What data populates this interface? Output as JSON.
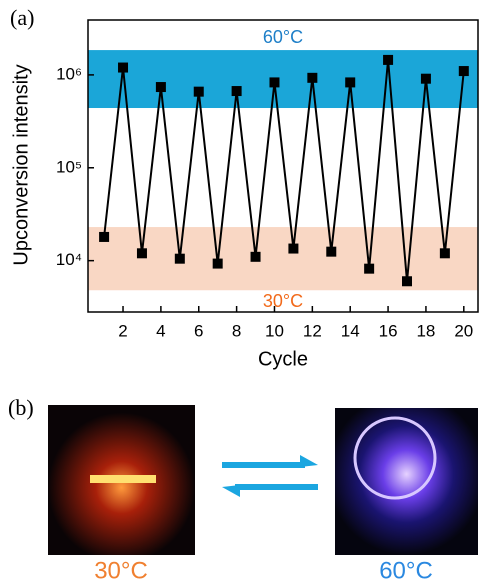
{
  "chart_data": {
    "type": "line",
    "x_label": "Cycle",
    "y_label": "Upconversion intensity",
    "x": [
      1,
      2,
      3,
      4,
      5,
      6,
      7,
      8,
      9,
      10,
      11,
      12,
      13,
      14,
      15,
      16,
      17,
      18,
      19,
      20
    ],
    "series": [
      {
        "color": "#000000",
        "values": [
          18000,
          1200000,
          12000,
          740000,
          10500,
          660000,
          9300,
          670000,
          11000,
          830000,
          13500,
          930000,
          12500,
          830000,
          8200,
          1450000,
          6000,
          910000,
          12000,
          1100000
        ]
      }
    ],
    "xlim": [
      0.15,
      20.75
    ],
    "xticks": [
      2,
      4,
      6,
      8,
      10,
      12,
      14,
      16,
      18,
      20
    ],
    "ylim": [
      2800,
      3900000
    ],
    "log_y": true,
    "yticks": [
      {
        "value": 10000,
        "label": "10⁴"
      },
      {
        "value": 100000,
        "label": "10⁵"
      },
      {
        "value": 1000000,
        "label": "10⁶"
      }
    ],
    "bands": [
      {
        "label": "60°C",
        "from": 440000,
        "to": 1850000,
        "color": "#1ba6d8",
        "label_color": "#1e7fc8"
      },
      {
        "label": "30°C",
        "from": 4800,
        "to": 23000,
        "color": "#f9d7c4",
        "label_color": "#f26a1b"
      }
    ]
  },
  "panels": {
    "a": "(a)",
    "b": "(b)"
  },
  "photos": [
    {
      "caption": "30°C"
    },
    {
      "caption": "60°C"
    }
  ]
}
